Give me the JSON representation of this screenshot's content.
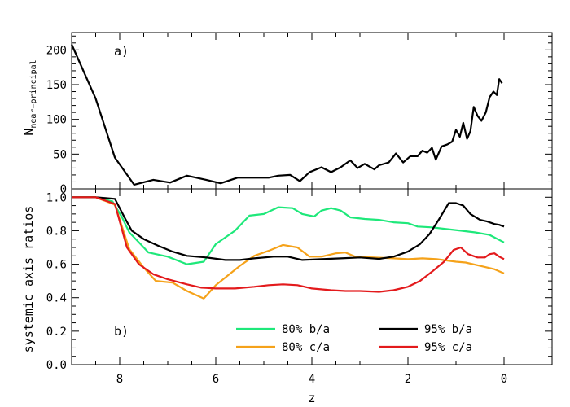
{
  "chart_data": [
    {
      "type": "line",
      "panel_label": "a)",
      "ylabel_main": "N",
      "ylabel_sub": "near−principal",
      "xlim": [
        9,
        -1
      ],
      "ylim": [
        0,
        225
      ],
      "yticks": [
        0,
        50,
        100,
        150,
        200
      ],
      "ytick_labels": [
        "0",
        "50",
        "100",
        "150",
        "200"
      ],
      "series": [
        {
          "color": "#000000",
          "points": [
            [
              9.0,
              208
            ],
            [
              8.5,
              130
            ],
            [
              8.1,
              45
            ],
            [
              7.7,
              6
            ],
            [
              7.3,
              13
            ],
            [
              6.95,
              9
            ],
            [
              6.6,
              19
            ],
            [
              6.2,
              13
            ],
            [
              5.9,
              8
            ],
            [
              5.55,
              16
            ],
            [
              5.2,
              16
            ],
            [
              4.9,
              16
            ],
            [
              4.7,
              19
            ],
            [
              4.45,
              20
            ],
            [
              4.25,
              11
            ],
            [
              4.05,
              24
            ],
            [
              3.8,
              31
            ],
            [
              3.6,
              24
            ],
            [
              3.4,
              31
            ],
            [
              3.2,
              41
            ],
            [
              3.05,
              30
            ],
            [
              2.9,
              36
            ],
            [
              2.7,
              28
            ],
            [
              2.6,
              34
            ],
            [
              2.4,
              38
            ],
            [
              2.25,
              51
            ],
            [
              2.1,
              38
            ],
            [
              1.95,
              47
            ],
            [
              1.8,
              47
            ],
            [
              1.7,
              55
            ],
            [
              1.6,
              52
            ],
            [
              1.5,
              59
            ],
            [
              1.42,
              42
            ],
            [
              1.3,
              61
            ],
            [
              1.18,
              64
            ],
            [
              1.08,
              68
            ],
            [
              1.0,
              85
            ],
            [
              0.92,
              75
            ],
            [
              0.85,
              95
            ],
            [
              0.77,
              72
            ],
            [
              0.7,
              83
            ],
            [
              0.63,
              118
            ],
            [
              0.55,
              105
            ],
            [
              0.47,
              98
            ],
            [
              0.38,
              110
            ],
            [
              0.3,
              132
            ],
            [
              0.22,
              140
            ],
            [
              0.15,
              135
            ],
            [
              0.1,
              158
            ],
            [
              0.04,
              152
            ]
          ]
        }
      ]
    },
    {
      "type": "line",
      "panel_label": "b)",
      "ylabel": "systemic axis ratios",
      "xlabel": "z",
      "xlim": [
        9,
        -1
      ],
      "ylim": [
        0,
        1.05
      ],
      "xticks": [
        8,
        6,
        4,
        2,
        0
      ],
      "xtick_labels": [
        "8",
        "6",
        "4",
        "2",
        "0"
      ],
      "yticks": [
        0.0,
        0.2,
        0.4,
        0.6,
        0.8,
        1.0
      ],
      "ytick_labels": [
        "0.0",
        "0.2",
        "0.4",
        "0.6",
        "0.8",
        "1.0"
      ],
      "legend_position": "lower-right",
      "series": [
        {
          "name": "80% b/a",
          "color": "#1ee87a",
          "points": [
            [
              9.0,
              1.0
            ],
            [
              8.5,
              1.0
            ],
            [
              8.15,
              0.975
            ],
            [
              7.95,
              0.88
            ],
            [
              7.8,
              0.79
            ],
            [
              7.6,
              0.73
            ],
            [
              7.4,
              0.67
            ],
            [
              7.0,
              0.645
            ],
            [
              6.6,
              0.6
            ],
            [
              6.25,
              0.615
            ],
            [
              6.0,
              0.72
            ],
            [
              5.6,
              0.8
            ],
            [
              5.3,
              0.89
            ],
            [
              5.0,
              0.9
            ],
            [
              4.7,
              0.94
            ],
            [
              4.4,
              0.935
            ],
            [
              4.2,
              0.9
            ],
            [
              3.95,
              0.885
            ],
            [
              3.8,
              0.92
            ],
            [
              3.6,
              0.935
            ],
            [
              3.4,
              0.92
            ],
            [
              3.2,
              0.88
            ],
            [
              2.9,
              0.87
            ],
            [
              2.6,
              0.865
            ],
            [
              2.3,
              0.85
            ],
            [
              2.0,
              0.845
            ],
            [
              1.8,
              0.825
            ],
            [
              1.5,
              0.82
            ],
            [
              1.2,
              0.81
            ],
            [
              0.9,
              0.8
            ],
            [
              0.6,
              0.79
            ],
            [
              0.3,
              0.775
            ],
            [
              0.0,
              0.73
            ]
          ]
        },
        {
          "name": "80% c/a",
          "color": "#f5a21a",
          "points": [
            [
              9.0,
              1.0
            ],
            [
              8.5,
              1.0
            ],
            [
              8.1,
              0.955
            ],
            [
              7.8,
              0.69
            ],
            [
              7.5,
              0.58
            ],
            [
              7.25,
              0.5
            ],
            [
              6.9,
              0.49
            ],
            [
              6.6,
              0.44
            ],
            [
              6.25,
              0.395
            ],
            [
              6.0,
              0.475
            ],
            [
              5.5,
              0.59
            ],
            [
              5.2,
              0.65
            ],
            [
              4.9,
              0.68
            ],
            [
              4.6,
              0.715
            ],
            [
              4.3,
              0.7
            ],
            [
              4.05,
              0.645
            ],
            [
              3.8,
              0.645
            ],
            [
              3.5,
              0.665
            ],
            [
              3.3,
              0.67
            ],
            [
              3.1,
              0.645
            ],
            [
              2.7,
              0.64
            ],
            [
              2.3,
              0.635
            ],
            [
              2.0,
              0.63
            ],
            [
              1.7,
              0.635
            ],
            [
              1.4,
              0.63
            ],
            [
              1.0,
              0.615
            ],
            [
              0.8,
              0.61
            ],
            [
              0.5,
              0.59
            ],
            [
              0.2,
              0.57
            ],
            [
              0.0,
              0.545
            ]
          ]
        },
        {
          "name": "95% b/a",
          "color": "#000000",
          "points": [
            [
              9.0,
              1.0
            ],
            [
              8.5,
              1.0
            ],
            [
              8.1,
              0.99
            ],
            [
              7.9,
              0.88
            ],
            [
              7.75,
              0.8
            ],
            [
              7.5,
              0.75
            ],
            [
              7.2,
              0.71
            ],
            [
              6.9,
              0.675
            ],
            [
              6.6,
              0.65
            ],
            [
              6.2,
              0.64
            ],
            [
              5.8,
              0.625
            ],
            [
              5.5,
              0.625
            ],
            [
              5.2,
              0.635
            ],
            [
              4.8,
              0.645
            ],
            [
              4.5,
              0.645
            ],
            [
              4.2,
              0.625
            ],
            [
              3.8,
              0.63
            ],
            [
              3.4,
              0.635
            ],
            [
              3.0,
              0.64
            ],
            [
              2.6,
              0.632
            ],
            [
              2.3,
              0.645
            ],
            [
              2.0,
              0.675
            ],
            [
              1.75,
              0.72
            ],
            [
              1.55,
              0.78
            ],
            [
              1.35,
              0.87
            ],
            [
              1.15,
              0.965
            ],
            [
              1.0,
              0.965
            ],
            [
              0.85,
              0.95
            ],
            [
              0.7,
              0.9
            ],
            [
              0.5,
              0.865
            ],
            [
              0.35,
              0.855
            ],
            [
              0.2,
              0.84
            ],
            [
              0.1,
              0.835
            ],
            [
              0.0,
              0.825
            ]
          ]
        },
        {
          "name": "95% c/a",
          "color": "#e31a1c",
          "points": [
            [
              9.0,
              1.0
            ],
            [
              8.5,
              1.0
            ],
            [
              8.1,
              0.96
            ],
            [
              7.85,
              0.7
            ],
            [
              7.6,
              0.6
            ],
            [
              7.3,
              0.54
            ],
            [
              7.0,
              0.51
            ],
            [
              6.6,
              0.48
            ],
            [
              6.3,
              0.46
            ],
            [
              6.0,
              0.455
            ],
            [
              5.6,
              0.455
            ],
            [
              5.2,
              0.465
            ],
            [
              4.9,
              0.475
            ],
            [
              4.6,
              0.48
            ],
            [
              4.3,
              0.475
            ],
            [
              4.0,
              0.455
            ],
            [
              3.6,
              0.445
            ],
            [
              3.3,
              0.44
            ],
            [
              3.0,
              0.44
            ],
            [
              2.6,
              0.435
            ],
            [
              2.3,
              0.445
            ],
            [
              2.0,
              0.465
            ],
            [
              1.75,
              0.5
            ],
            [
              1.5,
              0.555
            ],
            [
              1.25,
              0.615
            ],
            [
              1.05,
              0.685
            ],
            [
              0.9,
              0.7
            ],
            [
              0.75,
              0.66
            ],
            [
              0.55,
              0.64
            ],
            [
              0.4,
              0.64
            ],
            [
              0.3,
              0.66
            ],
            [
              0.2,
              0.665
            ],
            [
              0.1,
              0.645
            ],
            [
              0.0,
              0.63
            ]
          ]
        }
      ]
    }
  ]
}
